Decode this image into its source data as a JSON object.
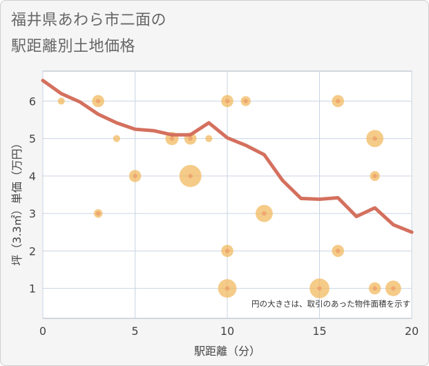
{
  "title_line1": "福井県あわら市二面の",
  "title_line2": "駅距離別土地価格",
  "colors": {
    "line": "#d4705e",
    "bubble": "#f1b75a",
    "plot_bg": "#ffffff",
    "grid": "#c9d4e3",
    "frame": "#f5f5f5"
  },
  "chart_data": {
    "type": "scatter",
    "title": "福井県あわら市二面の駅距離別土地価格",
    "xlabel": "駅距離（分）",
    "ylabel": "坪（3.3㎡）単価（万円）",
    "xlim": [
      0,
      20
    ],
    "ylim": [
      0.2,
      6.8
    ],
    "x_ticks": [
      "0",
      "5",
      "10",
      "15",
      "20"
    ],
    "y_ticks": [
      "1",
      "2",
      "3",
      "4",
      "5",
      "6"
    ],
    "grid": true,
    "note": "円の大きさは、取引のあった物件面積を示す",
    "bubbles": [
      {
        "x": 1,
        "y": 6,
        "s": 1
      },
      {
        "x": 3,
        "y": 6,
        "s": 3
      },
      {
        "x": 3,
        "y": 3,
        "s": 1.5
      },
      {
        "x": 4,
        "y": 5,
        "s": 1
      },
      {
        "x": 5,
        "y": 4,
        "s": 3
      },
      {
        "x": 7,
        "y": 5,
        "s": 3.5
      },
      {
        "x": 8,
        "y": 5,
        "s": 3
      },
      {
        "x": 8,
        "y": 4,
        "s": 10
      },
      {
        "x": 9,
        "y": 5,
        "s": 1
      },
      {
        "x": 10,
        "y": 6,
        "s": 3
      },
      {
        "x": 11,
        "y": 6,
        "s": 2
      },
      {
        "x": 10,
        "y": 2,
        "s": 3
      },
      {
        "x": 10,
        "y": 1,
        "s": 7
      },
      {
        "x": 12,
        "y": 3,
        "s": 6
      },
      {
        "x": 15,
        "y": 1,
        "s": 8
      },
      {
        "x": 16,
        "y": 6,
        "s": 3
      },
      {
        "x": 16,
        "y": 2,
        "s": 3
      },
      {
        "x": 18,
        "y": 5,
        "s": 6
      },
      {
        "x": 18,
        "y": 4,
        "s": 2
      },
      {
        "x": 18,
        "y": 1,
        "s": 3
      },
      {
        "x": 19,
        "y": 1,
        "s": 5
      }
    ],
    "series": [
      {
        "x": [
          0,
          1,
          2,
          3,
          4,
          5,
          6,
          7,
          8,
          9,
          10,
          11,
          12,
          13,
          14,
          15,
          16,
          17,
          18,
          19,
          20
        ],
        "values": [
          6.55,
          6.2,
          5.98,
          5.65,
          5.42,
          5.25,
          5.21,
          5.1,
          5.1,
          5.42,
          5.02,
          4.82,
          4.57,
          3.88,
          3.4,
          3.38,
          3.42,
          2.92,
          3.15,
          2.7,
          2.5
        ]
      }
    ]
  }
}
